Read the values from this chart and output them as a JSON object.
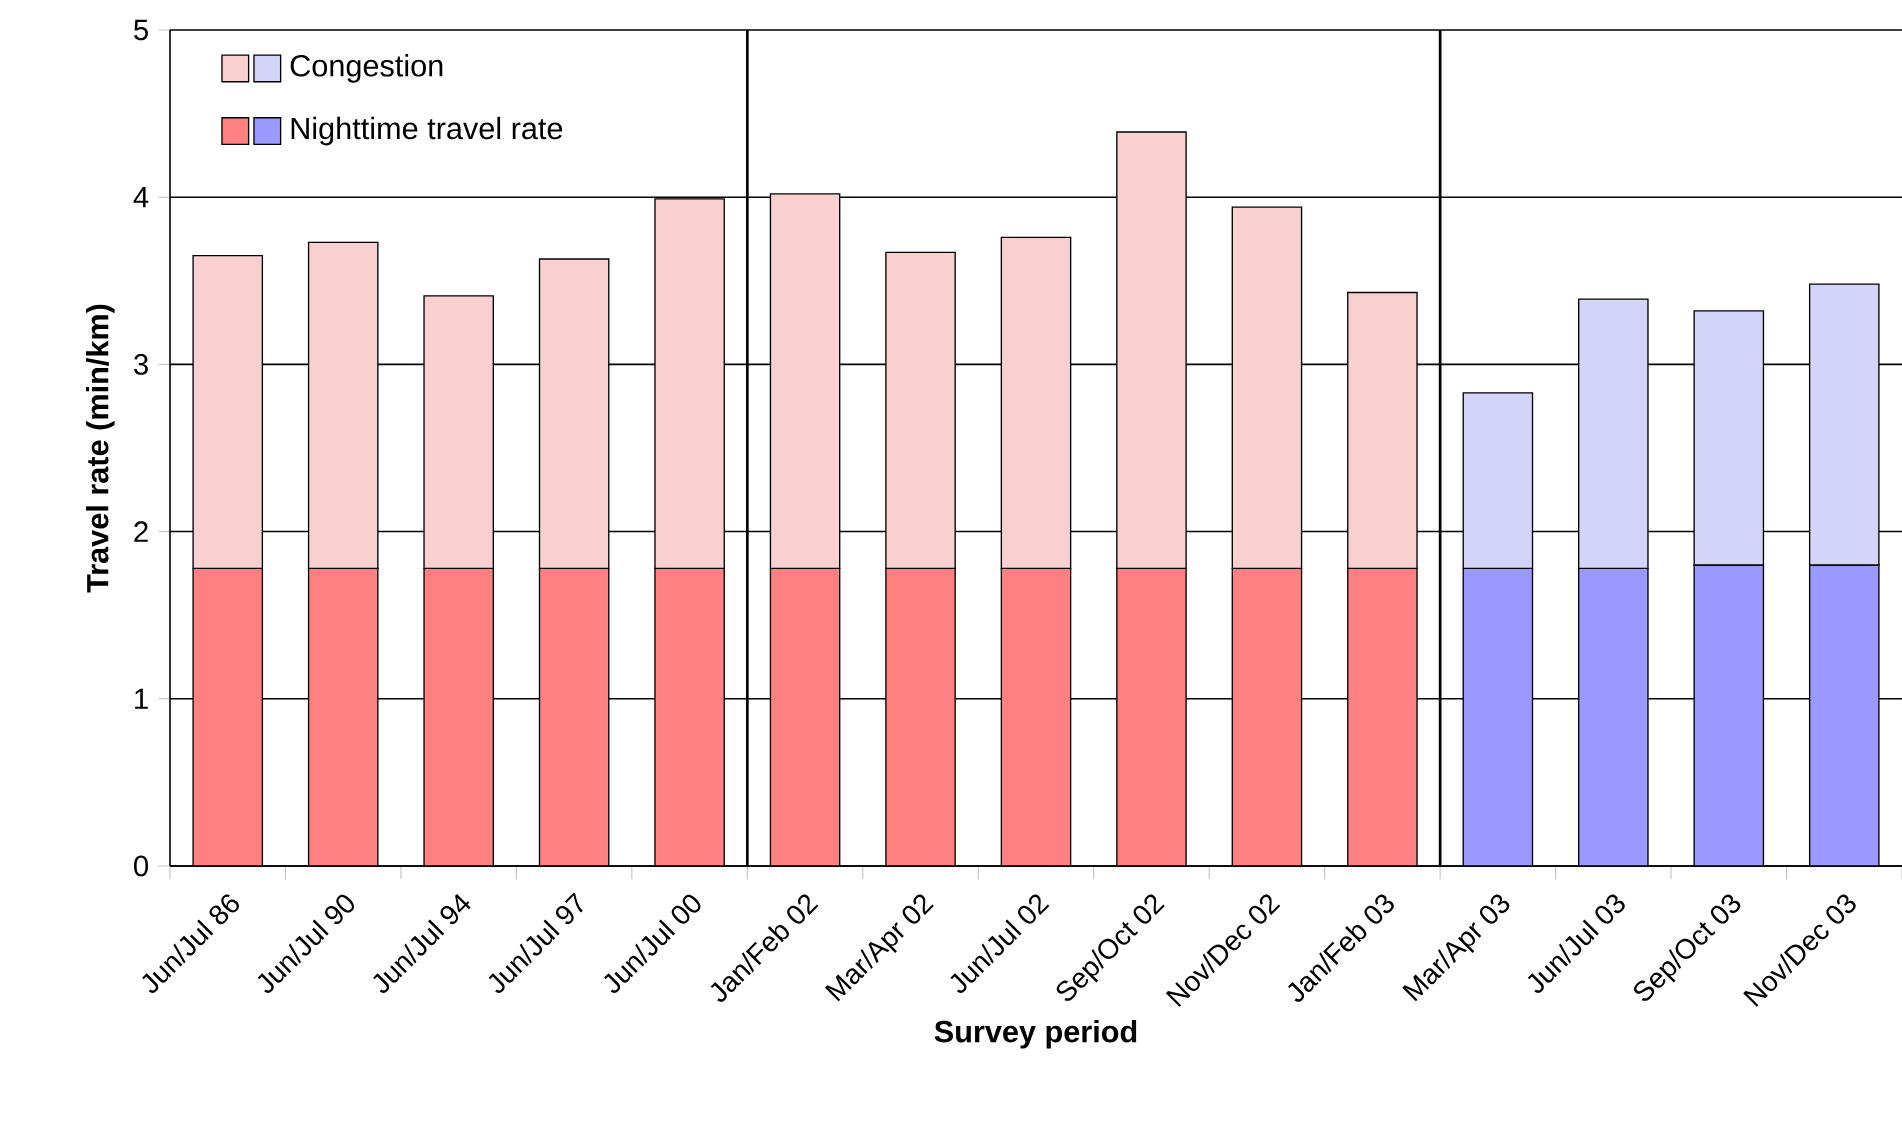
{
  "chart_data": {
    "type": "bar",
    "stacked": true,
    "xlabel": "Survey period",
    "ylabel": "Travel rate (min/km)",
    "categories": [
      "Jun/Jul 86",
      "Jun/Jul 90",
      "Jun/Jul 94",
      "Jun/Jul 97",
      "Jun/Jul 00",
      "Jan/Feb 02",
      "Mar/Apr 02",
      "Jun/Jul 02",
      "Sep/Oct 02",
      "Nov/Dec 02",
      "Jan/Feb 03",
      "Mar/Apr 03",
      "Jun/Jul 03",
      "Sep/Oct 03",
      "Nov/Dec 03"
    ],
    "series": [
      {
        "name": "Nighttime travel rate",
        "colors": [
          "#ff8080",
          "#ff8080",
          "#ff8080",
          "#ff8080",
          "#ff8080",
          "#ff8080",
          "#ff8080",
          "#ff8080",
          "#ff8080",
          "#ff8080",
          "#ff8080",
          "#9999ff",
          "#9999ff",
          "#9999ff",
          "#9999ff"
        ],
        "values": [
          1.78,
          1.78,
          1.78,
          1.78,
          1.78,
          1.78,
          1.78,
          1.78,
          1.78,
          1.78,
          1.78,
          1.78,
          1.78,
          1.8,
          1.8
        ]
      },
      {
        "name": "Congestion",
        "colors": [
          "#f8d0d0",
          "#f8d0d0",
          "#f8d0d0",
          "#f8d0d0",
          "#f8d0d0",
          "#f8d0d0",
          "#f8d0d0",
          "#f8d0d0",
          "#f8d0d0",
          "#f8d0d0",
          "#f8d0d0",
          "#d4d4f8",
          "#d4d4f8",
          "#d4d4f8",
          "#d4d4f8"
        ],
        "values": [
          1.87,
          1.95,
          1.63,
          1.85,
          2.21,
          2.24,
          1.89,
          1.98,
          2.61,
          2.16,
          1.65,
          1.05,
          1.61,
          1.52,
          1.68
        ]
      }
    ],
    "ylim": [
      0,
      5
    ],
    "yticks": [
      0,
      1,
      2,
      3,
      4,
      5
    ],
    "grid": "y",
    "legend": "top left"
  }
}
